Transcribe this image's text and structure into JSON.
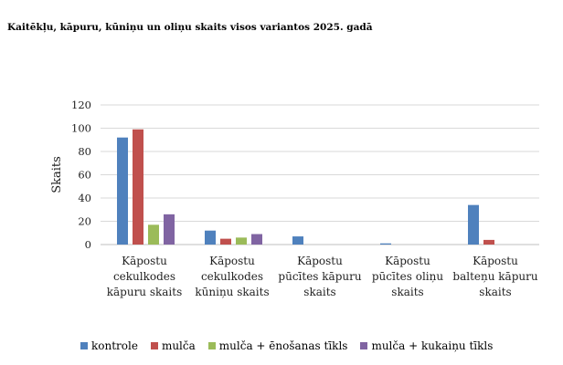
{
  "title": "Kaitēkļu, kāpuru, kūniņu un oliņu skaits visos variantos 2025. gadā",
  "chart_data": {
    "type": "bar",
    "title": "Kaitēkļu, kāpuru, kūniņu un oliņu skaits visos variantos 2025. gadā",
    "xlabel": "",
    "ylabel": "Skaits",
    "ylim": [
      0,
      120
    ],
    "yticks": [
      0,
      20,
      40,
      60,
      80,
      100,
      120
    ],
    "grid": true,
    "legend_position": "bottom",
    "categories": [
      [
        "Kāpostu",
        "cekulkodes",
        "kāpuru skaits"
      ],
      [
        "Kāpostu",
        "cekulkodes",
        "kūniņu skaits"
      ],
      [
        "Kāpostu",
        "pūcītes kāpuru",
        "skaits"
      ],
      [
        "Kāpostu",
        "pūcītes oliņu",
        "skaits"
      ],
      [
        "Kāpostu",
        "balteņu kāpuru",
        "skaits"
      ]
    ],
    "series": [
      {
        "name": "kontrole",
        "color": "#4f81bd",
        "values": [
          92,
          12,
          7,
          1,
          34
        ]
      },
      {
        "name": "mulča",
        "color": "#c0504d",
        "values": [
          99,
          5,
          0,
          0,
          4
        ]
      },
      {
        "name": "mulča + ēnošanas tīkls",
        "color": "#9bbb59",
        "values": [
          17,
          6,
          0,
          0,
          0
        ]
      },
      {
        "name": "mulča + kukaiņu tīkls",
        "color": "#8064a2",
        "values": [
          26,
          9,
          0,
          0,
          0
        ]
      }
    ]
  }
}
